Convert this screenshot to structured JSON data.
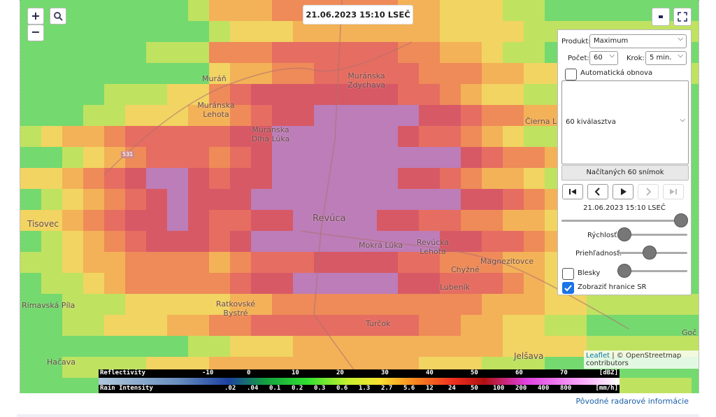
{
  "map": {
    "timestamp": "21.06.2023 15:10 LSEČ",
    "zoom_in": "+",
    "zoom_out": "−",
    "road": "531",
    "places": [
      "Muráň",
      "Muránska Zdychava",
      "Muránska Lehota",
      "Muránska Dlhá Lúka",
      "Čierna Le",
      "Tisovec",
      "Revúca",
      "Mokrá Lúka",
      "Revúcka Lehota",
      "Chyžné",
      "Magnezitovce",
      "Lubeník",
      "Rimavská Píla",
      "Ratkovské Bystré",
      "Turčok",
      "Hačava",
      "Jelšava",
      "Goč"
    ],
    "attribution": {
      "leaflet": "Leaflet",
      "osm": "| © OpenStreetmap contributors"
    }
  },
  "legend": {
    "reflectivity_title": "Reflectivity",
    "reflectivity_ticks": [
      "-10",
      "0",
      "10",
      "20",
      "30",
      "40",
      "50",
      "60",
      "70"
    ],
    "reflectivity_unit": "[dBZ]",
    "rain_title": "Rain Intensity",
    "rain_ticks": [
      ".02",
      ".04",
      "0.1",
      "0.2",
      "0.3",
      "0.6",
      "1.3",
      "2.7",
      "5.6",
      "12",
      "24",
      "50",
      "100",
      "200",
      "400",
      "800"
    ],
    "rain_unit": "[mm/h]"
  },
  "panel": {
    "product_label": "Produkt:",
    "product": "Maximum",
    "count_label": "Počet:",
    "count": "60",
    "step_label": "Krok:",
    "step": "5 min.",
    "auto_refresh": "Automatická obnova",
    "selected": "60 kiválasztva",
    "loaded": "Načítaných 60 snímok",
    "time": "21.06.2023 15:10 LSEČ",
    "speed": "Rýchlosť:",
    "opacity": "Priehľadnosť:",
    "lightning": "Blesky",
    "borders": "Zobraziť hranice SR"
  },
  "footer": {
    "link": "Pôvodné radarové informácie"
  }
}
